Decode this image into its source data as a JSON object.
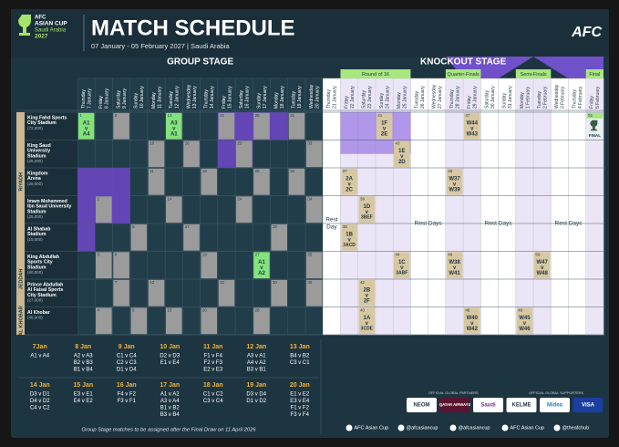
{
  "header": {
    "logo": [
      "AFC",
      "ASIAN CUP",
      "Saudi Arabia",
      "2027"
    ],
    "title": "MATCH SCHEDULE",
    "subtitle": "07 January - 05 February 2027 | Saudi Arabia",
    "brand": "AFC"
  },
  "stages": [
    {
      "name": "GROUP STAGE",
      "days": [
        0,
        13
      ]
    },
    {
      "name": "KNOCKOUT STAGE",
      "days": [
        14,
        29
      ]
    }
  ],
  "rounds": [
    {
      "name": "Round of 16",
      "days": [
        15,
        16,
        17,
        18
      ]
    },
    {
      "name": "Quarter-Finals",
      "days": [
        21,
        22
      ]
    },
    {
      "name": "Semi-Finals",
      "days": [
        25,
        26
      ]
    },
    {
      "name": "Final",
      "days": [
        29
      ]
    }
  ],
  "days": [
    [
      "Thursday",
      "7 January"
    ],
    [
      "Friday",
      "8 January"
    ],
    [
      "Saturday",
      "9 January"
    ],
    [
      "Sunday",
      "10 January"
    ],
    [
      "Monday",
      "11 January"
    ],
    [
      "Tuesday",
      "12 January"
    ],
    [
      "Wednesday",
      "13 January"
    ],
    [
      "Thursday",
      "14 January"
    ],
    [
      "Friday",
      "15 January"
    ],
    [
      "Saturday",
      "16 January"
    ],
    [
      "Sunday",
      "17 January"
    ],
    [
      "Monday",
      "18 January"
    ],
    [
      "Tuesday",
      "19 January"
    ],
    [
      "Wednesday",
      "20 January"
    ],
    [
      "Thursday",
      "21 January"
    ],
    [
      "Friday",
      "22 January"
    ],
    [
      "Saturday",
      "23 January"
    ],
    [
      "Sunday",
      "24 January"
    ],
    [
      "Monday",
      "25 January"
    ],
    [
      "Tuesday",
      "26 January"
    ],
    [
      "Wednesday",
      "27 January"
    ],
    [
      "Thursday",
      "28 January"
    ],
    [
      "Friday",
      "29 January"
    ],
    [
      "Saturday",
      "30 January"
    ],
    [
      "Sunday",
      "31 January"
    ],
    [
      "Monday",
      "1 February"
    ],
    [
      "Tuesday",
      "2 February"
    ],
    [
      "Wednesday",
      "3 February"
    ],
    [
      "Thursday",
      "4 February"
    ],
    [
      "Friday",
      "5 February"
    ]
  ],
  "regions": [
    {
      "name": "RIYADH",
      "venues": [
        0,
        4
      ]
    },
    {
      "name": "JEDDAH",
      "venues": [
        5,
        6
      ]
    },
    {
      "name": "AL KHOBAR",
      "venues": [
        7,
        7
      ]
    }
  ],
  "venues": [
    {
      "name": [
        "King Fahd Sports",
        "City Stadium"
      ],
      "capacity": "(72,000)"
    },
    {
      "name": [
        "King Saud",
        "University",
        "Stadium"
      ],
      "capacity": "(26,000)"
    },
    {
      "name": [
        "Kingdom",
        "Arena"
      ],
      "capacity": "(26,000)"
    },
    {
      "name": [
        "Imam Mohammed",
        "Ibn Saud University",
        "Stadium"
      ],
      "capacity": "(25,000)"
    },
    {
      "name": [
        "Al Shabab",
        "Stadium"
      ],
      "capacity": "(15,000)"
    },
    {
      "name": [
        "King Abdullah",
        "Sports City",
        "Stadium"
      ],
      "capacity": "(60,000)"
    },
    {
      "name": [
        "Prince Abdullah",
        "Al Faisal Sports",
        "City Stadium"
      ],
      "capacity": "(27,000)"
    },
    {
      "name": [
        "Al Khobar"
      ],
      "capacity": "(45,000)"
    }
  ],
  "group_matches": [
    {
      "number": "1",
      "day": 0,
      "venue": 0,
      "teams": [
        "A1",
        "v",
        "A4"
      ]
    },
    {
      "number": "2",
      "day": 1,
      "venue": 3
    },
    {
      "number": "3",
      "day": 1,
      "venue": 5
    },
    {
      "number": "4",
      "day": 1,
      "venue": 7
    },
    {
      "number": "5",
      "day": 2,
      "venue": 0
    },
    {
      "number": "6",
      "day": 2,
      "venue": 5
    },
    {
      "number": "7",
      "day": 2,
      "venue": 6
    },
    {
      "number": "8",
      "day": 3,
      "venue": 4
    },
    {
      "number": "9",
      "day": 3,
      "venue": 7
    },
    {
      "number": "10",
      "day": 4,
      "venue": 1
    },
    {
      "number": "11",
      "day": 4,
      "venue": 2
    },
    {
      "number": "12",
      "day": 4,
      "venue": 6
    },
    {
      "number": "13",
      "day": 5,
      "venue": 0,
      "teams": [
        "A3",
        "v",
        "A1"
      ]
    },
    {
      "number": "14",
      "day": 5,
      "venue": 3
    },
    {
      "number": "15",
      "day": 5,
      "venue": 7
    },
    {
      "number": "16",
      "day": 6,
      "venue": 1
    },
    {
      "number": "17",
      "day": 6,
      "venue": 4
    },
    {
      "number": "18",
      "day": 7,
      "venue": 2
    },
    {
      "number": "19",
      "day": 7,
      "venue": 5
    },
    {
      "number": "20",
      "day": 7,
      "venue": 7
    },
    {
      "number": "21",
      "day": 8,
      "venue": 0
    },
    {
      "number": "22",
      "day": 8,
      "venue": 6
    },
    {
      "number": "23",
      "day": 9,
      "venue": 1
    },
    {
      "number": "24",
      "day": 9,
      "venue": 3
    },
    {
      "number": "25",
      "day": 10,
      "venue": 0
    },
    {
      "number": "26",
      "day": 10,
      "venue": 2
    },
    {
      "number": "27",
      "day": 10,
      "venue": 5,
      "teams": [
        "A1",
        "v",
        "A2"
      ]
    },
    {
      "number": "28",
      "day": 10,
      "venue": 7
    },
    {
      "number": "29",
      "day": 11,
      "venue": 4
    },
    {
      "number": "30",
      "day": 11,
      "venue": 6
    },
    {
      "number": "31",
      "day": 12,
      "venue": 0
    },
    {
      "number": "32",
      "day": 12,
      "venue": 2
    },
    {
      "number": "33",
      "day": 13,
      "venue": 1
    },
    {
      "number": "34",
      "day": 13,
      "venue": 3
    },
    {
      "number": "35",
      "day": 13,
      "venue": 5
    },
    {
      "number": "36",
      "day": 13,
      "venue": 6
    }
  ],
  "knockout_matches": [
    {
      "number": "37",
      "day": 15,
      "venue": 2,
      "teams": [
        "2A",
        "v",
        "2C"
      ]
    },
    {
      "number": "38",
      "day": 15,
      "venue": 4,
      "teams": [
        "1B",
        "v",
        "3ACD"
      ]
    },
    {
      "number": "39",
      "day": 16,
      "venue": 3,
      "teams": [
        "1D",
        "v",
        "3BEF"
      ]
    },
    {
      "number": "40",
      "day": 16,
      "venue": 7,
      "teams": [
        "1A",
        "v",
        "3CDE"
      ]
    },
    {
      "number": "42",
      "day": 16,
      "venue": 6,
      "teams": [
        "2B",
        "v",
        "2F"
      ]
    },
    {
      "number": "41",
      "day": 17,
      "venue": 0,
      "teams": [
        "1F",
        "v",
        "2E"
      ]
    },
    {
      "number": "43",
      "day": 18,
      "venue": 1,
      "teams": [
        "1E",
        "v",
        "2D"
      ]
    },
    {
      "number": "44",
      "day": 18,
      "venue": 5,
      "teams": [
        "1C",
        "v",
        "3ABF"
      ]
    },
    {
      "number": "45",
      "day": 21,
      "venue": 2,
      "teams": [
        "W37",
        "v",
        "W39"
      ]
    },
    {
      "number": "46",
      "day": 21,
      "venue": 5,
      "teams": [
        "W38",
        "v",
        "W41"
      ]
    },
    {
      "number": "47",
      "day": 22,
      "venue": 0,
      "teams": [
        "W44",
        "v",
        "W43"
      ]
    },
    {
      "number": "48",
      "day": 22,
      "venue": 7,
      "teams": [
        "W40",
        "v",
        "W42"
      ]
    },
    {
      "number": "49",
      "day": 25,
      "venue": 7,
      "teams": [
        "W45",
        "v",
        "W46"
      ]
    },
    {
      "number": "50",
      "day": 26,
      "venue": 5,
      "teams": [
        "W47",
        "v",
        "W48"
      ]
    },
    {
      "number": "51",
      "day": 29,
      "venue": 0,
      "teams": [
        "FINAL"
      ]
    }
  ],
  "rest": [
    {
      "lines": [
        "Rest",
        "Day"
      ],
      "days": [
        14
      ]
    },
    {
      "lines": [
        "Rest Days"
      ],
      "days": [
        19,
        20
      ]
    },
    {
      "lines": [
        "Rest Days"
      ],
      "days": [
        23,
        24
      ]
    },
    {
      "lines": [
        "Rest Days"
      ],
      "days": [
        27,
        28
      ]
    }
  ],
  "summary": [
    {
      "date": "7Jan",
      "matches": [
        "A1 v A4"
      ]
    },
    {
      "date": "8 Jan",
      "matches": [
        "A2 v A3",
        "B2 v B3",
        "B1 v B4"
      ]
    },
    {
      "date": "9 Jan",
      "matches": [
        "C1 v C4",
        "C2 v C3",
        "D1 v D4"
      ]
    },
    {
      "date": "10 Jan",
      "matches": [
        "D2 v D3",
        "E1 v E4"
      ]
    },
    {
      "date": "11 Jan",
      "matches": [
        "F1 v F4",
        "F2 v F3",
        "E2 v E3"
      ]
    },
    {
      "date": "12 Jan",
      "matches": [
        "A3 v A1",
        "A4 v A2",
        "B3 v B1"
      ]
    },
    {
      "date": "13 Jan",
      "matches": [
        "B4 v B2",
        "C3 v C1"
      ]
    },
    {
      "date": "14 Jan",
      "matches": [
        "D3 v D1",
        "D4 v D2",
        "C4 v C2"
      ]
    },
    {
      "date": "15 Jan",
      "matches": [
        "E3 v E1",
        "E4 v E2"
      ]
    },
    {
      "date": "16 Jan",
      "matches": [
        "F4 v F2",
        "F3 v F1"
      ]
    },
    {
      "date": "17 Jan",
      "matches": [
        "A1 v A2",
        "A3 v A4",
        "B1 v B2",
        "B3 v B4"
      ]
    },
    {
      "date": "18 Jan",
      "matches": [
        "C1 v C2",
        "C3 v C4"
      ]
    },
    {
      "date": "19 Jan",
      "matches": [
        "D3 v D4",
        "D1 v D2"
      ]
    },
    {
      "date": "20 Jan",
      "matches": [
        "E1 v E2",
        "E3 v E4",
        "F1 v F2",
        "F3 v F4"
      ]
    }
  ],
  "footer": {
    "note": "Group Stage matches to be assigned after the Final Draw on 11 April 2026",
    "partners_label": "OFFICIAL GLOBAL PARTNERS",
    "partners": [
      "NEOM",
      "QATAR AIRWAYS",
      "Saudi"
    ],
    "supporters_label": "OFFICIAL GLOBAL SUPPORTERS",
    "supporters": [
      "KELME",
      "Midea",
      "VISA"
    ],
    "social": [
      "AFC Asian Cup",
      "@afcasiancup",
      "@afcasiancup",
      "AFC Asian Cup",
      "@theafchub"
    ]
  }
}
